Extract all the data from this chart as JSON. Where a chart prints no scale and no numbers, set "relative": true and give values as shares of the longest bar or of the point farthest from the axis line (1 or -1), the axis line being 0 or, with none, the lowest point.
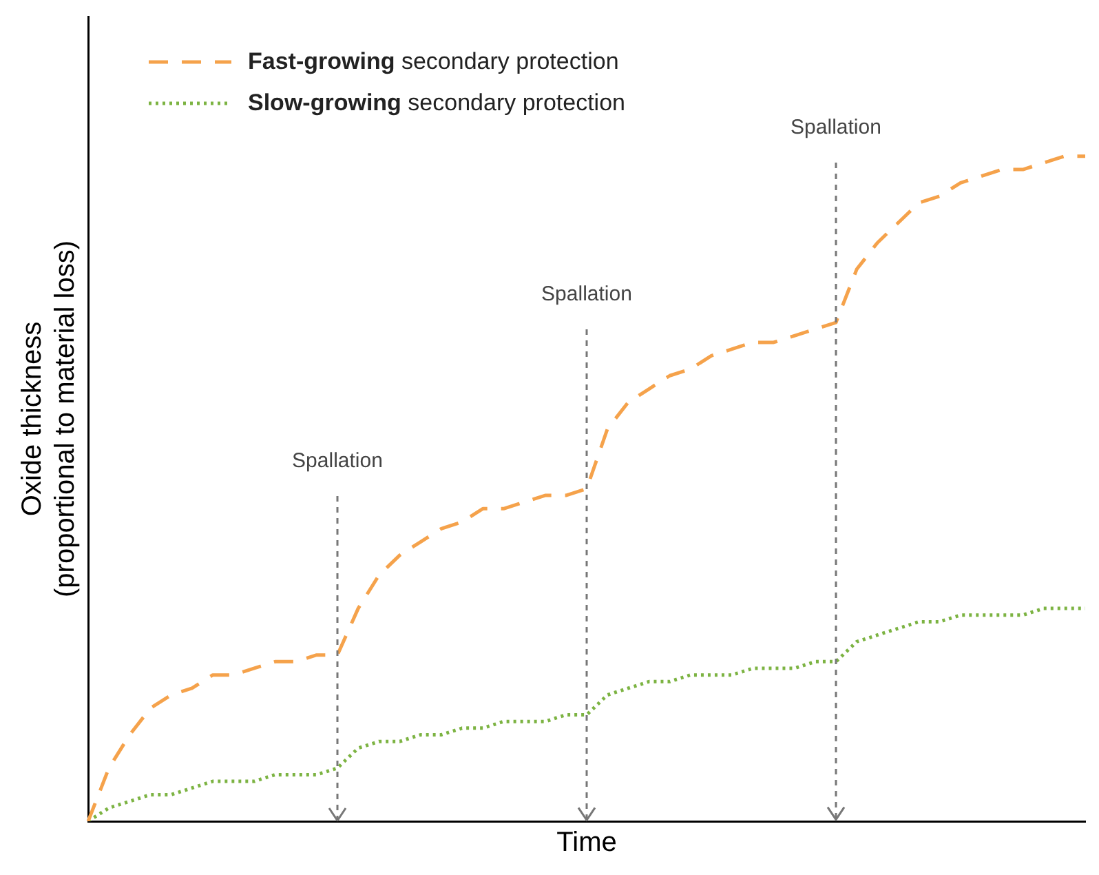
{
  "chart_data": {
    "type": "line",
    "relative": true,
    "xlabel": "Time",
    "ylabel": "Oxide thickness\n(proportional to material loss)",
    "grid": false,
    "legend": "top left",
    "marker": "none",
    "categories": [
      null,
      null,
      null,
      null,
      null,
      null,
      null,
      null,
      null,
      null,
      null,
      null,
      null,
      null,
      null,
      null,
      null,
      null,
      null,
      null,
      null,
      null,
      null,
      null,
      null,
      null,
      null,
      null,
      null,
      null,
      null,
      null,
      null,
      null,
      null,
      null,
      null,
      null,
      null,
      null,
      null,
      null,
      null,
      null,
      null,
      null,
      null,
      null,
      null
    ],
    "series": [
      {
        "name": "Fast-growing secondary protection",
        "color": "#f5a24b",
        "line_style": "dashed",
        "values": [
          0,
          0.08,
          0.13,
          0.17,
          0.19,
          0.2,
          0.22,
          0.22,
          0.23,
          0.24,
          0.24,
          0.25,
          0.25,
          0.32,
          0.37,
          0.4,
          0.42,
          0.44,
          0.45,
          0.47,
          0.47,
          0.48,
          0.49,
          0.49,
          0.5,
          0.59,
          0.63,
          0.65,
          0.67,
          0.68,
          0.7,
          0.71,
          0.72,
          0.72,
          0.73,
          0.74,
          0.75,
          0.83,
          0.87,
          0.9,
          0.93,
          0.94,
          0.96,
          0.97,
          0.98,
          0.98,
          0.99,
          1,
          1
        ]
      },
      {
        "name": "Slow-growing secondary protection",
        "color": "#7cb342",
        "line_style": "dotted",
        "values": [
          0,
          0.02,
          0.03,
          0.04,
          0.04,
          0.05,
          0.06,
          0.06,
          0.06,
          0.07,
          0.07,
          0.07,
          0.08,
          0.11,
          0.12,
          0.12,
          0.13,
          0.13,
          0.14,
          0.14,
          0.15,
          0.15,
          0.15,
          0.16,
          0.16,
          0.19,
          0.2,
          0.21,
          0.21,
          0.22,
          0.22,
          0.22,
          0.23,
          0.23,
          0.23,
          0.24,
          0.24,
          0.27,
          0.28,
          0.29,
          0.3,
          0.3,
          0.31,
          0.31,
          0.31,
          0.31,
          0.32,
          0.32,
          0.32
        ]
      }
    ],
    "annotations": [
      "Spallation",
      "Spallation",
      "Spallation"
    ]
  }
}
